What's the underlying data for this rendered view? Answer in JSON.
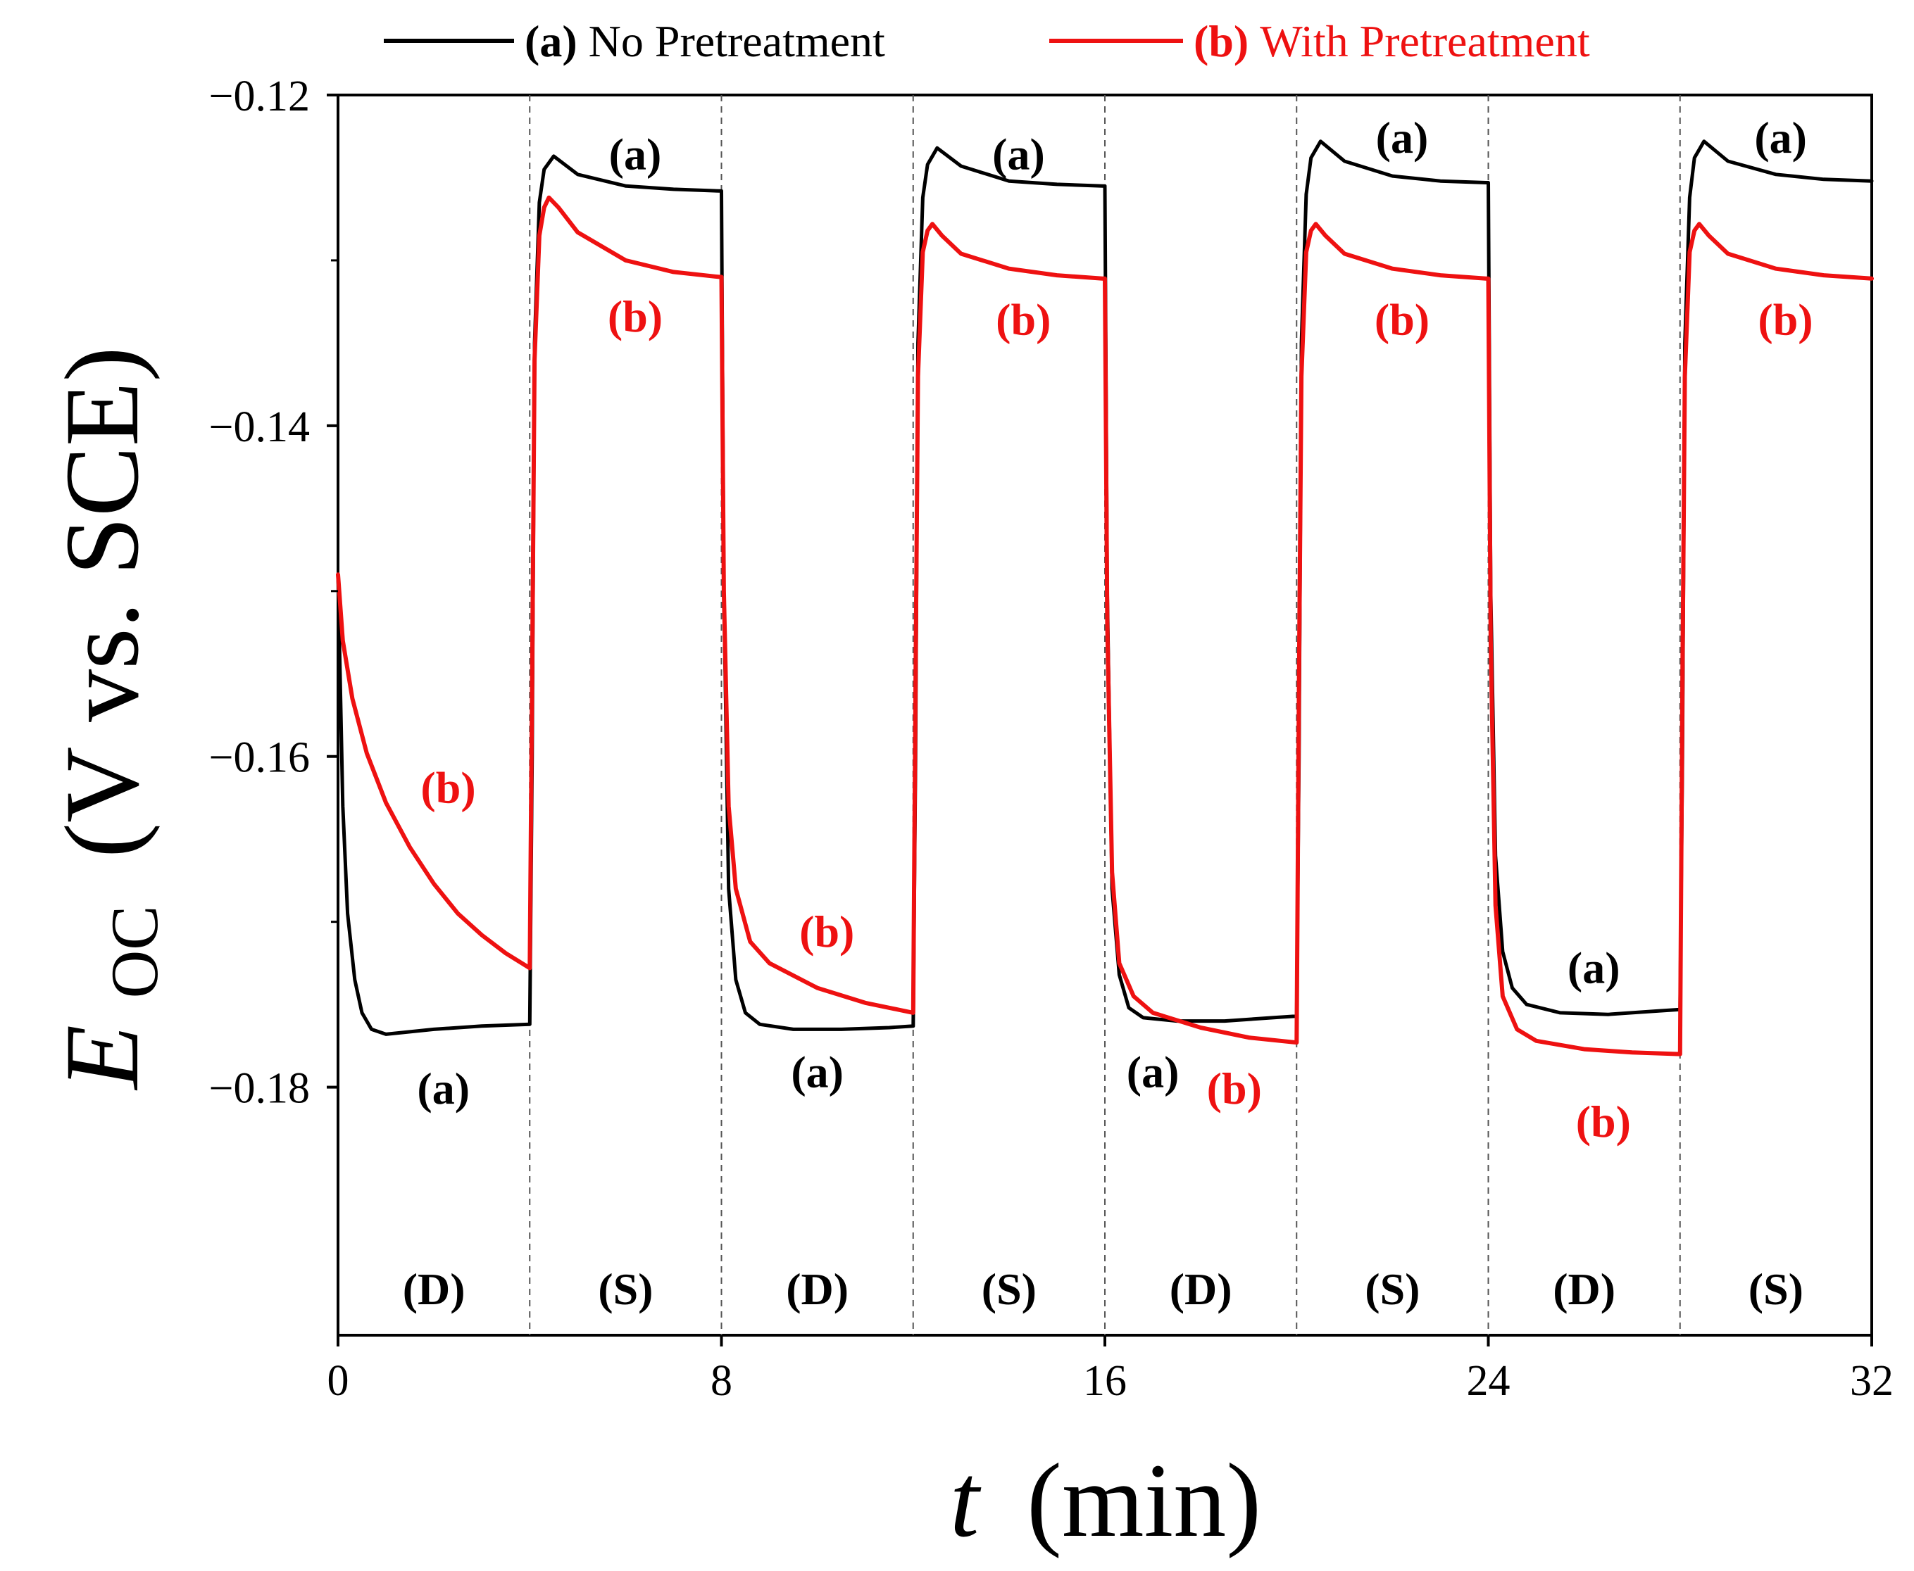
{
  "chart_data": {
    "type": "line",
    "title": "",
    "xlabel": {
      "symbol": "t",
      "unit": "(min)"
    },
    "ylabel": {
      "symbol": "E",
      "subscript": "OC",
      "unit": "(V vs. SCE)"
    },
    "xlim": [
      0,
      32
    ],
    "ylim": [
      -0.195,
      -0.12
    ],
    "xticks": [
      0,
      8,
      16,
      24,
      32
    ],
    "xtick_labels": [
      "0",
      "8",
      "16",
      "24",
      "32"
    ],
    "yticks": [
      -0.12,
      -0.14,
      -0.16,
      -0.18
    ],
    "ytick_labels": [
      "−0.12",
      "−0.14",
      "−0.16",
      "−0.18"
    ],
    "y_minor_ticks": [
      -0.13,
      -0.15,
      -0.17
    ],
    "phase_boundaries": [
      4,
      8,
      12,
      16,
      20,
      24,
      28
    ],
    "phase_labels": [
      {
        "x": 2,
        "label": "(D)"
      },
      {
        "x": 6,
        "label": "(S)"
      },
      {
        "x": 10,
        "label": "(D)"
      },
      {
        "x": 14,
        "label": "(S)"
      },
      {
        "x": 18,
        "label": "(D)"
      },
      {
        "x": 22,
        "label": "(S)"
      },
      {
        "x": 26,
        "label": "(D)"
      },
      {
        "x": 30,
        "label": "(S)"
      }
    ],
    "legend": {
      "position": "top",
      "entries": [
        {
          "tag": "(a)",
          "text": "No Pretreatment",
          "color": "#000000"
        },
        {
          "tag": "(b)",
          "text": "With Pretreatment",
          "color": "#ee1111"
        }
      ]
    },
    "series": [
      {
        "name": "(a) No Pretreatment",
        "color": "#000000",
        "points": [
          [
            0,
            -0.149
          ],
          [
            0.1,
            -0.163
          ],
          [
            0.2,
            -0.1695
          ],
          [
            0.35,
            -0.1735
          ],
          [
            0.5,
            -0.1755
          ],
          [
            0.7,
            -0.1765
          ],
          [
            1.0,
            -0.1768
          ],
          [
            2.0,
            -0.1765
          ],
          [
            3.0,
            -0.1763
          ],
          [
            4.0,
            -0.1762
          ],
          [
            4.0,
            -0.1762
          ],
          [
            4.05,
            -0.16
          ],
          [
            4.1,
            -0.135
          ],
          [
            4.2,
            -0.1265
          ],
          [
            4.3,
            -0.1245
          ],
          [
            4.5,
            -0.1237
          ],
          [
            5.0,
            -0.1248
          ],
          [
            6.0,
            -0.1255
          ],
          [
            7.0,
            -0.1257
          ],
          [
            7.95,
            -0.1258
          ],
          [
            8.0,
            -0.1258
          ],
          [
            8.05,
            -0.15
          ],
          [
            8.15,
            -0.168
          ],
          [
            8.3,
            -0.1735
          ],
          [
            8.5,
            -0.1755
          ],
          [
            8.8,
            -0.1762
          ],
          [
            9.5,
            -0.1765
          ],
          [
            10.5,
            -0.1765
          ],
          [
            11.5,
            -0.1764
          ],
          [
            12.0,
            -0.1763
          ],
          [
            12.0,
            -0.1763
          ],
          [
            12.05,
            -0.16
          ],
          [
            12.1,
            -0.135
          ],
          [
            12.2,
            -0.1262
          ],
          [
            12.3,
            -0.1242
          ],
          [
            12.5,
            -0.1232
          ],
          [
            13.0,
            -0.1243
          ],
          [
            14.0,
            -0.1252
          ],
          [
            15.0,
            -0.1254
          ],
          [
            15.95,
            -0.1255
          ],
          [
            16.0,
            -0.1255
          ],
          [
            16.05,
            -0.15
          ],
          [
            16.15,
            -0.168
          ],
          [
            16.3,
            -0.1732
          ],
          [
            16.5,
            -0.1752
          ],
          [
            16.8,
            -0.1758
          ],
          [
            17.5,
            -0.176
          ],
          [
            18.5,
            -0.176
          ],
          [
            19.5,
            -0.1758
          ],
          [
            20.0,
            -0.1757
          ],
          [
            20.0,
            -0.1757
          ],
          [
            20.05,
            -0.16
          ],
          [
            20.1,
            -0.135
          ],
          [
            20.2,
            -0.126
          ],
          [
            20.3,
            -0.1238
          ],
          [
            20.5,
            -0.1228
          ],
          [
            21.0,
            -0.124
          ],
          [
            22.0,
            -0.1249
          ],
          [
            23.0,
            -0.1252
          ],
          [
            23.95,
            -0.1253
          ],
          [
            24.0,
            -0.1253
          ],
          [
            24.05,
            -0.15
          ],
          [
            24.15,
            -0.166
          ],
          [
            24.3,
            -0.1718
          ],
          [
            24.5,
            -0.174
          ],
          [
            24.8,
            -0.175
          ],
          [
            25.5,
            -0.1755
          ],
          [
            26.5,
            -0.1756
          ],
          [
            27.5,
            -0.1754
          ],
          [
            28.0,
            -0.1753
          ],
          [
            28.0,
            -0.1753
          ],
          [
            28.05,
            -0.16
          ],
          [
            28.1,
            -0.135
          ],
          [
            28.2,
            -0.1262
          ],
          [
            28.3,
            -0.1238
          ],
          [
            28.5,
            -0.1228
          ],
          [
            29.0,
            -0.124
          ],
          [
            30.0,
            -0.1248
          ],
          [
            31.0,
            -0.1251
          ],
          [
            32.0,
            -0.1252
          ]
        ]
      },
      {
        "name": "(b) With Pretreatment",
        "color": "#ee1111",
        "points": [
          [
            0,
            -0.149
          ],
          [
            0.1,
            -0.153
          ],
          [
            0.3,
            -0.1565
          ],
          [
            0.6,
            -0.1598
          ],
          [
            1.0,
            -0.1628
          ],
          [
            1.5,
            -0.1655
          ],
          [
            2.0,
            -0.1677
          ],
          [
            2.5,
            -0.1695
          ],
          [
            3.0,
            -0.1708
          ],
          [
            3.5,
            -0.1719
          ],
          [
            4.0,
            -0.1728
          ],
          [
            4.0,
            -0.1728
          ],
          [
            4.05,
            -0.155
          ],
          [
            4.1,
            -0.136
          ],
          [
            4.2,
            -0.1285
          ],
          [
            4.3,
            -0.1268
          ],
          [
            4.4,
            -0.1262
          ],
          [
            4.6,
            -0.1268
          ],
          [
            5.0,
            -0.1283
          ],
          [
            6.0,
            -0.13
          ],
          [
            7.0,
            -0.1307
          ],
          [
            7.95,
            -0.131
          ],
          [
            8.0,
            -0.131
          ],
          [
            8.05,
            -0.15
          ],
          [
            8.15,
            -0.163
          ],
          [
            8.3,
            -0.168
          ],
          [
            8.6,
            -0.1712
          ],
          [
            9.0,
            -0.1725
          ],
          [
            10.0,
            -0.174
          ],
          [
            11.0,
            -0.1749
          ],
          [
            12.0,
            -0.1755
          ],
          [
            12.0,
            -0.1755
          ],
          [
            12.05,
            -0.155
          ],
          [
            12.1,
            -0.137
          ],
          [
            12.2,
            -0.1295
          ],
          [
            12.3,
            -0.1282
          ],
          [
            12.4,
            -0.1278
          ],
          [
            12.6,
            -0.1285
          ],
          [
            13.0,
            -0.1296
          ],
          [
            14.0,
            -0.1305
          ],
          [
            15.0,
            -0.1309
          ],
          [
            15.95,
            -0.1311
          ],
          [
            16.0,
            -0.1311
          ],
          [
            16.05,
            -0.152
          ],
          [
            16.15,
            -0.167
          ],
          [
            16.3,
            -0.1725
          ],
          [
            16.6,
            -0.1745
          ],
          [
            17.0,
            -0.1755
          ],
          [
            18.0,
            -0.1764
          ],
          [
            19.0,
            -0.177
          ],
          [
            20.0,
            -0.1773
          ],
          [
            20.0,
            -0.1773
          ],
          [
            20.05,
            -0.155
          ],
          [
            20.1,
            -0.137
          ],
          [
            20.2,
            -0.1295
          ],
          [
            20.3,
            -0.1282
          ],
          [
            20.4,
            -0.1278
          ],
          [
            20.6,
            -0.1285
          ],
          [
            21.0,
            -0.1296
          ],
          [
            22.0,
            -0.1305
          ],
          [
            23.0,
            -0.1309
          ],
          [
            23.95,
            -0.1311
          ],
          [
            24.0,
            -0.1311
          ],
          [
            24.05,
            -0.153
          ],
          [
            24.15,
            -0.169
          ],
          [
            24.3,
            -0.1745
          ],
          [
            24.6,
            -0.1765
          ],
          [
            25.0,
            -0.1772
          ],
          [
            26.0,
            -0.1777
          ],
          [
            27.0,
            -0.1779
          ],
          [
            28.0,
            -0.178
          ],
          [
            28.0,
            -0.178
          ],
          [
            28.05,
            -0.155
          ],
          [
            28.1,
            -0.137
          ],
          [
            28.2,
            -0.1295
          ],
          [
            28.3,
            -0.1282
          ],
          [
            28.4,
            -0.1278
          ],
          [
            28.6,
            -0.1285
          ],
          [
            29.0,
            -0.1296
          ],
          [
            30.0,
            -0.1305
          ],
          [
            31.0,
            -0.1309
          ],
          [
            32.0,
            -0.1311
          ]
        ]
      }
    ],
    "annotations": [
      {
        "text": "(a)",
        "x": 6.2,
        "y": -0.1245,
        "color": "#000000"
      },
      {
        "text": "(a)",
        "x": 14.2,
        "y": -0.1245,
        "color": "#000000"
      },
      {
        "text": "(a)",
        "x": 22.2,
        "y": -0.1235,
        "color": "#000000"
      },
      {
        "text": "(a)",
        "x": 30.1,
        "y": -0.1235,
        "color": "#000000"
      },
      {
        "text": "(b)",
        "x": 6.2,
        "y": -0.1343,
        "color": "#ee1111"
      },
      {
        "text": "(b)",
        "x": 14.3,
        "y": -0.1345,
        "color": "#ee1111"
      },
      {
        "text": "(b)",
        "x": 22.2,
        "y": -0.1345,
        "color": "#ee1111"
      },
      {
        "text": "(b)",
        "x": 30.2,
        "y": -0.1345,
        "color": "#ee1111"
      },
      {
        "text": "(b)",
        "x": 2.3,
        "y": -0.1628,
        "color": "#ee1111"
      },
      {
        "text": "(a)",
        "x": 2.2,
        "y": -0.181,
        "color": "#000000"
      },
      {
        "text": "(b)",
        "x": 10.2,
        "y": -0.1715,
        "color": "#ee1111"
      },
      {
        "text": "(a)",
        "x": 10.0,
        "y": -0.18,
        "color": "#000000"
      },
      {
        "text": "(a)",
        "x": 17.0,
        "y": -0.18,
        "color": "#000000"
      },
      {
        "text": "(b)",
        "x": 18.7,
        "y": -0.181,
        "color": "#ee1111"
      },
      {
        "text": "(a)",
        "x": 26.2,
        "y": -0.1737,
        "color": "#000000"
      },
      {
        "text": "(b)",
        "x": 26.4,
        "y": -0.183,
        "color": "#ee1111"
      }
    ]
  }
}
